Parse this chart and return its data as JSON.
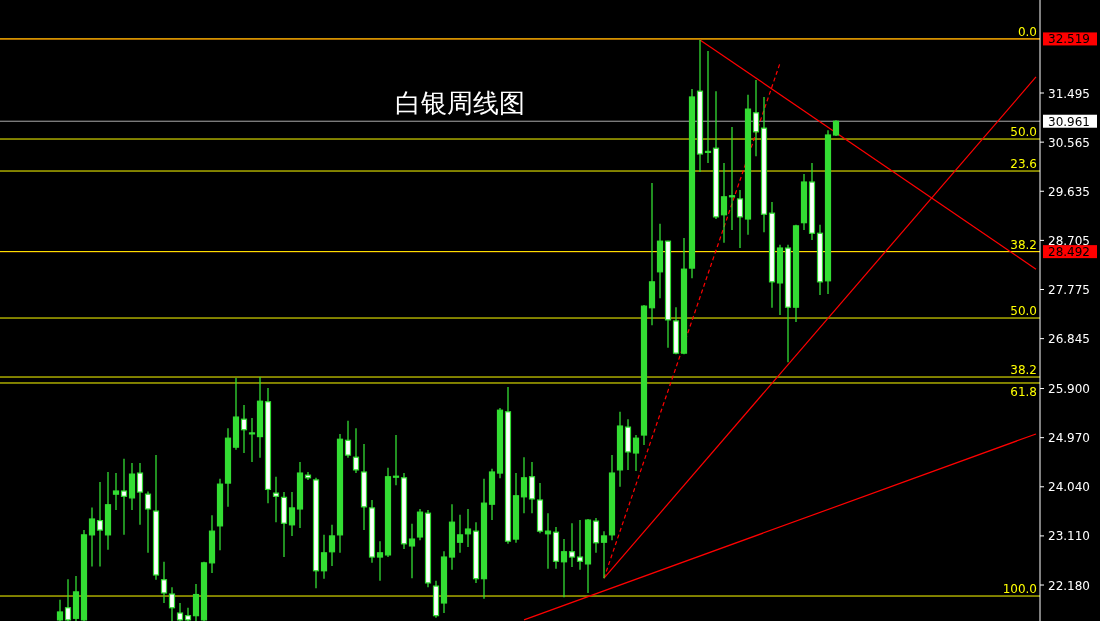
{
  "chart_data": {
    "type": "candlestick",
    "title": "白银周线图",
    "categories": [
      null,
      null,
      null,
      null,
      null,
      null,
      null,
      null,
      null,
      null,
      null,
      null,
      null,
      null,
      null,
      null,
      null,
      null,
      null,
      null,
      null,
      null,
      null,
      null,
      null,
      null,
      null,
      null,
      null,
      null,
      null,
      null,
      null,
      null,
      null,
      null,
      null,
      null,
      null,
      null,
      null,
      null,
      null,
      null,
      null,
      null,
      null,
      null,
      null,
      null,
      null,
      null,
      null,
      null,
      null,
      null,
      null,
      null,
      null,
      null,
      null,
      null,
      null,
      null,
      null,
      null,
      null,
      null,
      null,
      null,
      null,
      null,
      null,
      null,
      null,
      null,
      null,
      null,
      null,
      null,
      null,
      null,
      null,
      null,
      null,
      null,
      null,
      null,
      null,
      null,
      null,
      null,
      null,
      null,
      null,
      null,
      null,
      null,
      null,
      null,
      null,
      null,
      null,
      null,
      null,
      null,
      null,
      null,
      null,
      null,
      null,
      null,
      null,
      null,
      null,
      null,
      null,
      null,
      null,
      null,
      null,
      null,
      null,
      null,
      null,
      null,
      null,
      null,
      null,
      null
    ],
    "ylim": [
      21.499,
      33.256
    ],
    "tick_labels": "y",
    "yticks": [
      31.495,
      30.565,
      29.635,
      28.705,
      27.775,
      26.845,
      {
        "value": 25.9,
        "label": "25.900"
      },
      {
        "value": 24.97,
        "label": "24.970"
      },
      {
        "value": 24.04,
        "label": "24.040"
      },
      {
        "value": 23.11,
        "label": "23.110"
      },
      {
        "value": 22.18,
        "label": "22.180"
      }
    ],
    "series": [
      {
        "color": "#33dd33",
        "ohlc": [
          null,
          null,
          null,
          null,
          null,
          null,
          null,
          [
            21.52,
            21.9,
            21.5,
            21.67
          ],
          [
            21.75,
            22.29,
            21.5,
            21.52
          ],
          [
            21.55,
            22.35,
            21.5,
            22.05
          ],
          [
            21.52,
            23.22,
            21.5,
            23.13
          ],
          [
            23.13,
            23.65,
            22.53,
            23.43
          ],
          [
            23.4,
            24.13,
            22.53,
            23.22
          ],
          [
            23.13,
            24.32,
            22.85,
            23.7
          ],
          [
            23.9,
            24.3,
            23.6,
            23.96
          ],
          [
            23.96,
            24.57,
            23.13,
            23.86
          ],
          [
            23.83,
            24.49,
            23.6,
            24.28
          ],
          [
            24.3,
            24.49,
            23.32,
            23.94
          ],
          [
            23.9,
            23.95,
            22.79,
            23.62
          ],
          [
            23.58,
            24.64,
            22.28,
            22.37
          ],
          [
            22.28,
            22.62,
            21.84,
            22.03
          ],
          [
            22.01,
            22.14,
            21.5,
            21.75
          ],
          [
            21.65,
            21.84,
            21.5,
            21.52
          ],
          [
            21.6,
            21.75,
            21.5,
            21.52
          ],
          [
            21.6,
            22.2,
            21.5,
            22.0
          ],
          [
            21.52,
            22.62,
            21.5,
            22.6
          ],
          [
            22.6,
            23.5,
            22.41,
            23.2
          ],
          [
            23.3,
            24.19,
            22.84,
            24.09
          ],
          [
            24.11,
            25.15,
            23.66,
            24.96
          ],
          [
            24.79,
            26.1,
            24.74,
            25.36
          ],
          [
            25.32,
            25.59,
            24.68,
            25.12
          ],
          [
            25.06,
            25.34,
            24.51,
            25.05
          ],
          [
            24.99,
            26.12,
            24.59,
            25.66
          ],
          [
            25.65,
            25.91,
            23.73,
            23.99
          ],
          [
            23.92,
            24.23,
            23.37,
            23.86
          ],
          [
            23.84,
            23.94,
            22.71,
            23.35
          ],
          [
            23.32,
            23.94,
            23.11,
            23.64
          ],
          [
            23.62,
            24.51,
            23.26,
            24.3
          ],
          [
            24.26,
            24.32,
            24.17,
            24.21
          ],
          [
            24.17,
            24.21,
            22.12,
            22.45
          ],
          [
            22.45,
            23.13,
            22.3,
            22.79
          ],
          [
            22.81,
            23.32,
            22.54,
            23.11
          ],
          [
            23.13,
            25.04,
            22.79,
            24.94
          ],
          [
            24.92,
            25.29,
            24.59,
            24.64
          ],
          [
            24.6,
            25.15,
            24.3,
            24.36
          ],
          [
            24.32,
            24.85,
            23.22,
            23.66
          ],
          [
            23.64,
            23.79,
            22.6,
            22.71
          ],
          [
            22.71,
            23.01,
            22.26,
            22.79
          ],
          [
            22.75,
            24.4,
            22.71,
            24.23
          ],
          [
            24.23,
            25.02,
            24.07,
            24.24
          ],
          [
            24.21,
            24.3,
            22.86,
            22.96
          ],
          [
            22.92,
            23.34,
            22.31,
            23.05
          ],
          [
            23.09,
            23.62,
            23.03,
            23.56
          ],
          [
            23.54,
            23.6,
            22.14,
            22.22
          ],
          [
            22.16,
            22.26,
            21.56,
            21.6
          ],
          [
            21.84,
            22.82,
            21.65,
            22.71
          ],
          [
            22.71,
            23.71,
            22.47,
            23.37
          ],
          [
            22.99,
            23.51,
            22.79,
            23.13
          ],
          [
            23.15,
            23.62,
            22.9,
            23.24
          ],
          [
            23.2,
            23.37,
            22.22,
            22.3
          ],
          [
            22.3,
            24.19,
            21.92,
            23.73
          ],
          [
            23.71,
            24.38,
            23.41,
            24.32
          ],
          [
            24.3,
            25.53,
            24.2,
            25.49
          ],
          [
            25.46,
            25.93,
            22.96,
            23.01
          ],
          [
            23.05,
            24.3,
            22.98,
            23.87
          ],
          [
            23.85,
            24.6,
            23.54,
            24.21
          ],
          [
            24.23,
            24.51,
            23.54,
            23.81
          ],
          [
            23.79,
            24.11,
            23.16,
            23.2
          ],
          [
            23.15,
            23.54,
            22.49,
            23.2
          ],
          [
            23.18,
            23.28,
            22.49,
            22.63
          ],
          [
            22.62,
            23.05,
            21.95,
            22.81
          ],
          [
            22.81,
            23.35,
            22.52,
            22.71
          ],
          [
            22.71,
            23.41,
            22.47,
            22.63
          ],
          [
            22.58,
            23.43,
            22.03,
            23.41
          ],
          [
            23.39,
            23.45,
            22.79,
            22.98
          ],
          [
            22.99,
            23.2,
            22.31,
            23.11
          ],
          [
            23.13,
            24.64,
            23.03,
            24.3
          ],
          [
            24.36,
            25.46,
            24.04,
            25.19
          ],
          [
            25.17,
            25.32,
            24.36,
            24.7
          ],
          [
            24.68,
            25.02,
            24.34,
            24.96
          ],
          [
            25.02,
            27.48,
            24.83,
            27.46
          ],
          [
            27.43,
            29.79,
            27.1,
            27.92
          ],
          [
            28.11,
            29.02,
            27.61,
            28.69
          ],
          [
            28.69,
            28.7,
            26.67,
            27.2
          ],
          [
            27.18,
            27.44,
            26.55,
            26.57
          ],
          [
            26.57,
            28.75,
            26.55,
            28.16
          ],
          [
            28.18,
            31.57,
            27.99,
            31.42
          ],
          [
            31.53,
            32.5,
            30.0,
            30.34
          ],
          [
            30.39,
            32.29,
            30.17,
            30.37
          ],
          [
            30.45,
            31.53,
            29.11,
            29.15
          ],
          [
            29.19,
            30.17,
            28.66,
            29.53
          ],
          [
            29.53,
            30.85,
            28.9,
            29.55
          ],
          [
            29.49,
            29.66,
            28.56,
            29.15
          ],
          [
            29.11,
            31.46,
            28.81,
            31.19
          ],
          [
            31.12,
            31.74,
            30.3,
            30.76
          ],
          [
            30.83,
            31.42,
            28.86,
            29.2
          ],
          [
            29.22,
            29.43,
            27.43,
            27.92
          ],
          [
            27.9,
            28.62,
            27.29,
            28.56
          ],
          [
            28.56,
            28.62,
            26.4,
            27.44
          ],
          [
            27.44,
            29.0,
            27.16,
            28.98
          ],
          [
            29.04,
            29.96,
            28.9,
            29.81
          ],
          [
            29.81,
            30.17,
            28.71,
            28.84
          ],
          [
            28.84,
            29.0,
            27.67,
            27.92
          ],
          [
            27.94,
            30.79,
            27.69,
            30.7
          ],
          [
            30.7,
            30.98,
            30.68,
            30.96
          ],
          null,
          null,
          null,
          null,
          null,
          null,
          null,
          null,
          null,
          null,
          null,
          null,
          null,
          null,
          null,
          null,
          null,
          null,
          null,
          null,
          null,
          null,
          null,
          null,
          null
        ]
      },
      {
        "type": "line",
        "color": "#ff0000",
        "values": [
          null,
          null,
          null,
          null,
          null,
          null,
          null,
          null,
          null,
          null,
          null,
          null,
          null,
          null,
          null,
          null,
          null,
          null,
          null,
          null,
          null,
          null,
          null,
          null,
          null,
          null,
          null,
          null,
          null,
          null,
          null,
          null,
          null,
          null,
          null,
          null,
          null,
          null,
          null,
          null,
          null,
          null,
          null,
          null,
          null,
          null,
          null,
          null,
          null,
          null,
          null,
          null,
          null,
          null,
          null,
          null,
          null,
          null,
          null,
          null,
          null,
          null,
          null,
          null,
          null,
          null,
          null,
          null,
          null,
          null,
          null,
          null,
          null,
          null,
          null,
          null,
          null,
          null,
          null,
          null,
          null,
          null,
          null,
          null,
          null,
          null,
          null,
          32.5,
          null,
          null,
          null,
          null,
          null,
          null,
          null,
          null,
          null,
          null,
          null,
          null,
          null,
          null,
          null,
          null,
          null,
          null,
          null,
          null,
          null,
          null,
          null,
          null,
          null,
          null,
          null,
          null,
          null,
          null,
          null,
          null,
          null,
          null,
          null,
          null,
          null,
          null,
          null,
          null,
          null,
          28.16
        ]
      },
      {
        "type": "line",
        "color": "#ff0000",
        "values": [
          null,
          null,
          null,
          null,
          null,
          null,
          null,
          null,
          null,
          null,
          null,
          null,
          null,
          null,
          null,
          null,
          null,
          null,
          null,
          null,
          null,
          null,
          null,
          null,
          null,
          null,
          null,
          null,
          null,
          null,
          null,
          null,
          null,
          null,
          null,
          null,
          null,
          null,
          null,
          null,
          null,
          null,
          null,
          null,
          null,
          null,
          null,
          null,
          null,
          null,
          null,
          null,
          null,
          null,
          null,
          null,
          null,
          null,
          null,
          null,
          null,
          null,
          null,
          null,
          null,
          null,
          null,
          null,
          null,
          null,
          null,
          null,
          null,
          null,
          null,
          22.31,
          null,
          null,
          null,
          null,
          null,
          null,
          null,
          null,
          null,
          null,
          null,
          null,
          null,
          null,
          null,
          null,
          null,
          null,
          null,
          null,
          null,
          null,
          null,
          null,
          null,
          null,
          null,
          null,
          null,
          null,
          null,
          null,
          null,
          null,
          null,
          null,
          null,
          null,
          null,
          null,
          null,
          null,
          null,
          null,
          null,
          null,
          null,
          null,
          null,
          null,
          null,
          null,
          null,
          31.8
        ]
      },
      {
        "type": "line",
        "color": "#ff0000",
        "values": [
          null,
          null,
          null,
          null,
          null,
          null,
          null,
          null,
          null,
          null,
          null,
          null,
          null,
          null,
          null,
          null,
          null,
          null,
          null,
          null,
          null,
          null,
          null,
          null,
          null,
          null,
          null,
          null,
          null,
          null,
          null,
          null,
          null,
          null,
          null,
          null,
          null,
          null,
          null,
          null,
          null,
          null,
          null,
          null,
          null,
          null,
          null,
          null,
          null,
          null,
          null,
          null,
          null,
          null,
          null,
          null,
          null,
          null,
          null,
          null,
          null,
          null,
          null,
          null,
          null,
          21.52,
          null,
          null,
          null,
          null,
          null,
          null,
          null,
          null,
          null,
          null,
          null,
          null,
          null,
          null,
          null,
          null,
          null,
          null,
          null,
          null,
          null,
          null,
          null,
          null,
          null,
          null,
          null,
          null,
          null,
          null,
          null,
          null,
          null,
          null,
          null,
          null,
          null,
          null,
          null,
          null,
          null,
          null,
          null,
          null,
          null,
          null,
          null,
          null,
          null,
          null,
          null,
          null,
          null,
          null,
          null,
          null,
          null,
          null,
          null,
          null,
          null,
          null,
          null,
          25.04
        ]
      },
      {
        "type": "line",
        "color": "#ff0000",
        "line_style": "dashed",
        "values": [
          null,
          null,
          null,
          null,
          null,
          null,
          null,
          null,
          null,
          null,
          null,
          null,
          null,
          null,
          null,
          null,
          null,
          null,
          null,
          null,
          null,
          null,
          null,
          null,
          null,
          null,
          null,
          null,
          null,
          null,
          null,
          null,
          null,
          null,
          null,
          null,
          null,
          null,
          null,
          null,
          null,
          null,
          null,
          null,
          null,
          null,
          null,
          null,
          null,
          null,
          null,
          null,
          null,
          null,
          null,
          null,
          null,
          null,
          null,
          null,
          null,
          null,
          null,
          null,
          null,
          null,
          null,
          null,
          null,
          null,
          null,
          null,
          null,
          null,
          null,
          22.31,
          null,
          null,
          null,
          null,
          null,
          null,
          null,
          null,
          null,
          null,
          null,
          null,
          null,
          null,
          null,
          null,
          null,
          null,
          null,
          null,
          null,
          32.06,
          null,
          null,
          null,
          null,
          null,
          null,
          null,
          null,
          null,
          null,
          null,
          null,
          null,
          null,
          null,
          null,
          null,
          null,
          null,
          null,
          null,
          null,
          null,
          null,
          null,
          null,
          null,
          null,
          null,
          null,
          null,
          null
        ]
      }
    ],
    "ref_lines": [
      {
        "axis": "y",
        "value": 32.519,
        "label": "32.519",
        "color": "#ff0000"
      },
      {
        "axis": "y",
        "value": 30.961,
        "label": "30.961",
        "color": "#aaaaaa"
      },
      {
        "axis": "y",
        "value": 28.492,
        "label": "28.492",
        "color": "#ff0000"
      },
      {
        "axis": "y",
        "value": 32.519,
        "color": "#ffff00"
      },
      {
        "axis": "y",
        "value": 30.624,
        "color": "#ffff00"
      },
      {
        "axis": "y",
        "value": 30.018,
        "color": "#ffff00"
      },
      {
        "axis": "y",
        "value": 28.492,
        "color": "#ffff00"
      },
      {
        "axis": "y",
        "value": 27.235,
        "color": "#ffff00"
      },
      {
        "axis": "y",
        "value": 26.118,
        "color": "#ffff00"
      },
      {
        "axis": "y",
        "value": 26.005,
        "color": "#ffff00"
      },
      {
        "axis": "y",
        "value": 21.972,
        "color": "#ffff00"
      }
    ],
    "annotations": [
      {
        "text": "0.0",
        "y": 32.519
      },
      {
        "text": "50.0",
        "y": 30.624
      },
      {
        "text": "23.6",
        "y": 30.018
      },
      {
        "text": "38.2",
        "y": 28.492
      },
      {
        "text": "50.0",
        "y": 27.235
      },
      {
        "text": "38.2",
        "y": 26.118
      },
      {
        "text": "61.8",
        "y": 26.005
      },
      {
        "text": "100.0",
        "y": 21.972
      }
    ]
  }
}
